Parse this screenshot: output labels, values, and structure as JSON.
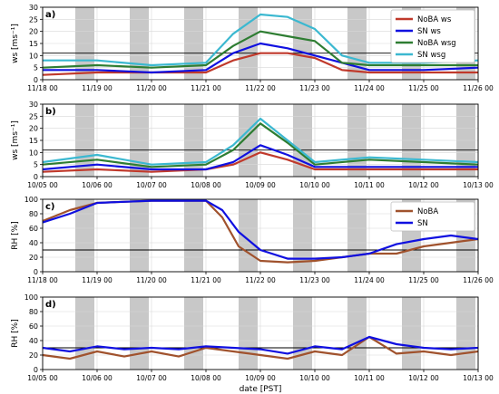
{
  "chart_data": [
    {
      "panel": "a)",
      "type": "line",
      "ylabel": "ws [ms⁻¹]",
      "xlabel": "",
      "ylim": [
        0,
        30
      ],
      "yticks": [
        0,
        5,
        10,
        15,
        20,
        25,
        30
      ],
      "xticks": [
        "11/18 00",
        "11/19 00",
        "11/20 00",
        "11/21 00",
        "11/22 00",
        "11/23 00",
        "11/24 00",
        "11/25 00",
        "11/26 00"
      ],
      "xrange_days": 8,
      "hline": 11,
      "grid": true,
      "legend": {
        "position": "top-right",
        "entries": [
          "NoBA ws",
          "SN ws",
          "NoBA wsg",
          "SN wsg"
        ]
      },
      "series": [
        {
          "name": "NoBA ws",
          "color": "#c0392b",
          "x": [
            0,
            1,
            2,
            3,
            3.5,
            4,
            4.5,
            5,
            5.5,
            6,
            7,
            8
          ],
          "y": [
            2,
            3,
            3,
            3,
            8,
            11,
            11,
            9,
            4,
            3,
            3,
            3
          ]
        },
        {
          "name": "SN ws",
          "color": "#1010e0",
          "x": [
            0,
            1,
            2,
            3,
            3.5,
            4,
            4.5,
            5,
            5.5,
            6,
            7,
            8
          ],
          "y": [
            4,
            4,
            3,
            4,
            11,
            15,
            13,
            10,
            7,
            4,
            4,
            5
          ]
        },
        {
          "name": "NoBA wsg",
          "color": "#2e7d32",
          "x": [
            0,
            1,
            2,
            3,
            3.5,
            4,
            4.5,
            5,
            5.5,
            6,
            7,
            8
          ],
          "y": [
            5,
            6,
            5,
            6,
            14,
            20,
            18,
            16,
            7,
            6,
            6,
            6
          ]
        },
        {
          "name": "SN wsg",
          "color": "#3bb8d0",
          "x": [
            0,
            1,
            2,
            3,
            3.5,
            4,
            4.5,
            5,
            5.5,
            6,
            7,
            8
          ],
          "y": [
            8,
            8,
            6,
            7,
            19,
            27,
            26,
            21,
            10,
            7,
            7,
            8
          ]
        }
      ]
    },
    {
      "panel": "b)",
      "type": "line",
      "ylabel": "ws [ms⁻¹]",
      "xlabel": "",
      "ylim": [
        0,
        30
      ],
      "yticks": [
        0,
        5,
        10,
        15,
        20,
        25,
        30
      ],
      "xticks": [
        "10/05 00",
        "10/06 00",
        "10/07 00",
        "10/08 00",
        "10/09 00",
        "10/10 00",
        "10/11 00",
        "10/12 00",
        "10/13 00"
      ],
      "xrange_days": 8,
      "hline": 11,
      "grid": true,
      "series": [
        {
          "name": "NoBA ws",
          "color": "#c0392b",
          "x": [
            0,
            1,
            2,
            3,
            3.5,
            4,
            4.5,
            5,
            6,
            7,
            8
          ],
          "y": [
            2,
            3,
            2,
            3,
            5,
            10,
            7,
            3,
            3,
            3,
            3
          ]
        },
        {
          "name": "SN ws",
          "color": "#1010e0",
          "x": [
            0,
            1,
            2,
            3,
            3.5,
            4,
            4.5,
            5,
            6,
            7,
            8
          ],
          "y": [
            3,
            5,
            3,
            3,
            6,
            13,
            9,
            4,
            4,
            4,
            4
          ]
        },
        {
          "name": "NoBA wsg",
          "color": "#2e7d32",
          "x": [
            0,
            1,
            2,
            3,
            3.5,
            4,
            4.5,
            5,
            6,
            7,
            8
          ],
          "y": [
            5,
            7,
            4,
            5,
            11,
            22,
            14,
            5,
            7,
            6,
            5
          ]
        },
        {
          "name": "SN wsg",
          "color": "#3bb8d0",
          "x": [
            0,
            1,
            2,
            3,
            3.5,
            4,
            4.5,
            5,
            6,
            7,
            8
          ],
          "y": [
            6,
            9,
            5,
            6,
            13,
            24,
            15,
            6,
            8,
            7,
            6
          ]
        }
      ]
    },
    {
      "panel": "c)",
      "type": "line",
      "ylabel": "RH [%]",
      "xlabel": "",
      "ylim": [
        0,
        100
      ],
      "yticks": [
        0,
        20,
        40,
        60,
        80,
        100
      ],
      "xticks": [
        "11/18 00",
        "11/19 00",
        "11/20 00",
        "11/21 00",
        "11/22 00",
        "11/23 00",
        "11/24 00",
        "11/25 00",
        "11/26 00"
      ],
      "xrange_days": 8,
      "hline": 30,
      "grid": true,
      "legend": {
        "position": "top-right",
        "entries": [
          "NoBA",
          "SN"
        ]
      },
      "series": [
        {
          "name": "NoBA",
          "color": "#a0522d",
          "x": [
            0,
            0.5,
            1,
            2,
            3,
            3.3,
            3.6,
            4,
            4.5,
            5,
            5.5,
            6,
            6.5,
            7,
            7.5,
            8
          ],
          "y": [
            70,
            85,
            95,
            98,
            98,
            75,
            35,
            15,
            13,
            15,
            20,
            25,
            25,
            35,
            40,
            45
          ]
        },
        {
          "name": "SN",
          "color": "#1010e0",
          "x": [
            0,
            0.5,
            1,
            2,
            3,
            3.3,
            3.6,
            4,
            4.5,
            5,
            5.5,
            6,
            6.5,
            7,
            7.5,
            8
          ],
          "y": [
            68,
            80,
            95,
            98,
            98,
            85,
            55,
            30,
            18,
            18,
            20,
            25,
            38,
            45,
            50,
            45
          ]
        }
      ]
    },
    {
      "panel": "d)",
      "type": "line",
      "ylabel": "RH [%]",
      "xlabel": "date [PST]",
      "ylim": [
        0,
        100
      ],
      "yticks": [
        0,
        20,
        40,
        60,
        80,
        100
      ],
      "xticks": [
        "10/05 00",
        "10/06 00",
        "10/07 00",
        "10/08 00",
        "10/09 00",
        "10/10 00",
        "10/11 00",
        "10/12 00",
        "10/13 00"
      ],
      "xrange_days": 8,
      "hline": 30,
      "grid": true,
      "series": [
        {
          "name": "NoBA",
          "color": "#a0522d",
          "x": [
            0,
            0.5,
            1,
            1.5,
            2,
            2.5,
            3,
            3.5,
            4,
            4.5,
            5,
            5.5,
            6,
            6.5,
            7,
            7.5,
            8
          ],
          "y": [
            20,
            15,
            25,
            18,
            25,
            18,
            30,
            25,
            20,
            15,
            25,
            20,
            45,
            22,
            25,
            20,
            25
          ]
        },
        {
          "name": "SN",
          "color": "#1010e0",
          "x": [
            0,
            0.5,
            1,
            1.5,
            2,
            2.5,
            3,
            3.5,
            4,
            4.5,
            5,
            5.5,
            6,
            6.5,
            7,
            7.5,
            8
          ],
          "y": [
            30,
            25,
            32,
            28,
            30,
            28,
            32,
            30,
            28,
            22,
            32,
            28,
            45,
            35,
            30,
            28,
            30
          ]
        }
      ]
    }
  ],
  "nighttime_shading": true
}
